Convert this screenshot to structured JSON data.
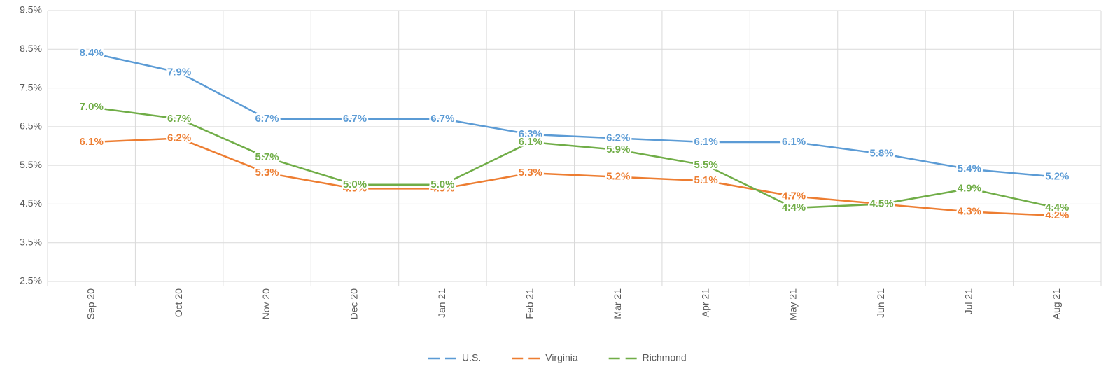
{
  "chart_data": {
    "type": "line",
    "categories": [
      "Sep 20",
      "Oct 20",
      "Nov 20",
      "Dec 20",
      "Jan 21",
      "Feb 21",
      "Mar 21",
      "Apr 21",
      "May 21",
      "Jun 21",
      "Jul 21",
      "Aug 21"
    ],
    "series": [
      {
        "name": "U.S.",
        "color": "#5b9bd5",
        "values": [
          8.4,
          7.9,
          6.7,
          6.7,
          6.7,
          6.3,
          6.2,
          6.1,
          6.1,
          5.8,
          5.4,
          5.2
        ],
        "value_labels": [
          "8.4%",
          "7.9%",
          "6.7%",
          "6.7%",
          "6.7%",
          "6.3%",
          "6.2%",
          "6.1%",
          "6.1%",
          "5.8%",
          "5.4%",
          "5.2%"
        ]
      },
      {
        "name": "Virginia",
        "color": "#ed7d31",
        "values": [
          6.1,
          6.2,
          5.3,
          4.9,
          4.9,
          5.3,
          5.2,
          5.1,
          4.7,
          4.5,
          4.3,
          4.2
        ],
        "value_labels": [
          "6.1%",
          "6.2%",
          "5.3%",
          "4.9%",
          "4.9%",
          "5.3%",
          "5.2%",
          "5.1%",
          "4.7%",
          "4.5%",
          "4.3%",
          "4.2%"
        ]
      },
      {
        "name": "Richmond",
        "color": "#70ad47",
        "values": [
          7.0,
          6.7,
          5.7,
          5.0,
          5.0,
          6.1,
          5.9,
          5.5,
          4.4,
          4.5,
          4.9,
          4.4
        ],
        "value_labels": [
          "7.0%",
          "6.7%",
          "5.7%",
          "5.0%",
          "5.0%",
          "6.1%",
          "5.9%",
          "5.5%",
          "4.4%",
          "4.5%",
          "4.9%",
          "4.4%"
        ]
      }
    ],
    "ylim": [
      2.5,
      9.5
    ],
    "yticks": [
      {
        "value": 2.5,
        "label": "2.5%"
      },
      {
        "value": 3.5,
        "label": "3.5%"
      },
      {
        "value": 4.5,
        "label": "4.5%"
      },
      {
        "value": 5.5,
        "label": "5.5%"
      },
      {
        "value": 6.5,
        "label": "6.5%"
      },
      {
        "value": 7.5,
        "label": "7.5%"
      },
      {
        "value": 8.5,
        "label": "8.5%"
      },
      {
        "value": 9.5,
        "label": "9.5%"
      }
    ],
    "grid": true,
    "legend": "bottom"
  }
}
